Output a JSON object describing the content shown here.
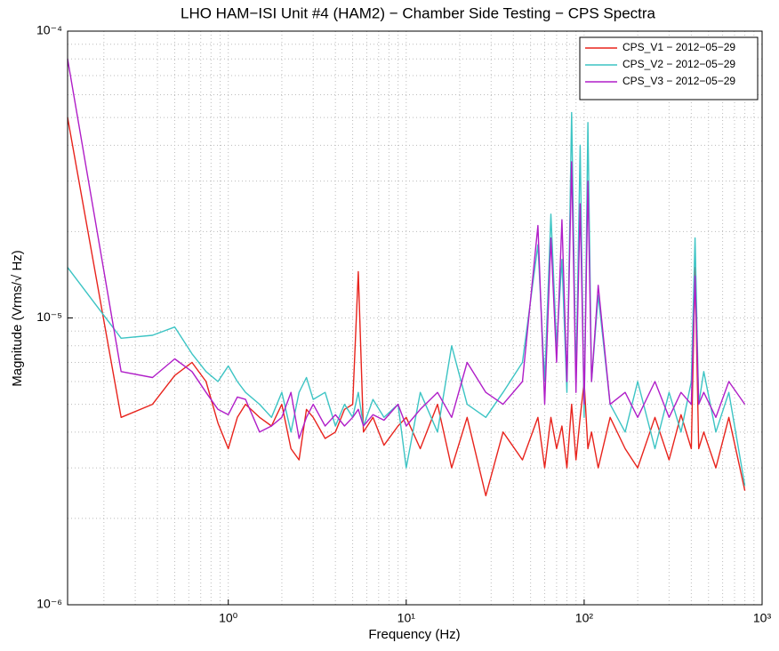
{
  "chart_data": {
    "type": "line",
    "title": "LHO HAM−ISI Unit #4 (HAM2) − Chamber Side Testing − CPS Spectra",
    "x_label": "Frequency (Hz)",
    "y_label": "Magnitude (Vrms/√ Hz)",
    "xscale": "log",
    "yscale": "log",
    "grid": true,
    "legend": "top-right",
    "xlim": [
      0.125,
      1000
    ],
    "ylim": [
      1e-06,
      0.0001
    ],
    "xticks": [
      {
        "value": 1,
        "label": "10⁰"
      },
      {
        "value": 10,
        "label": "10¹"
      },
      {
        "value": 100,
        "label": "10²"
      },
      {
        "value": 1000,
        "label": "10³"
      }
    ],
    "yticks": [
      {
        "value": 1e-06,
        "label": "10⁻⁶"
      },
      {
        "value": 1e-05,
        "label": "10⁻⁵"
      },
      {
        "value": 0.0001,
        "label": "10⁻⁴"
      }
    ],
    "x": [
      0.125,
      0.25,
      0.375,
      0.5,
      0.625,
      0.75,
      0.875,
      1,
      1.125,
      1.25,
      1.5,
      1.75,
      2,
      2.25,
      2.5,
      2.75,
      3,
      3.5,
      4,
      4.5,
      5,
      5.375,
      5.75,
      6.5,
      7.5,
      9,
      10,
      12,
      15,
      18,
      22,
      28,
      35,
      45,
      55,
      60,
      65,
      70,
      75,
      80,
      85,
      90,
      95,
      100,
      105,
      110,
      120,
      140,
      170,
      200,
      250,
      300,
      350,
      400,
      420,
      440,
      470,
      550,
      650,
      800
    ],
    "series": [
      {
        "name": "CPS_V1 − 2012−05−29",
        "color": "#e8231c",
        "values": [
          5e-05,
          4.5e-06,
          5e-06,
          6.3e-06,
          7e-06,
          6e-06,
          4.3e-06,
          3.5e-06,
          4.5e-06,
          5e-06,
          4.5e-06,
          4.2e-06,
          5e-06,
          3.5e-06,
          3.2e-06,
          4.8e-06,
          4.5e-06,
          3.8e-06,
          4e-06,
          4.8e-06,
          5e-06,
          1.45e-05,
          4e-06,
          4.5e-06,
          3.6e-06,
          4.2e-06,
          4.5e-06,
          3.5e-06,
          5e-06,
          3e-06,
          4.5e-06,
          2.4e-06,
          4e-06,
          3.2e-06,
          4.5e-06,
          3e-06,
          4.5e-06,
          3.5e-06,
          4.2e-06,
          3e-06,
          5e-06,
          3.2e-06,
          4.5e-06,
          6e-06,
          3.5e-06,
          4e-06,
          3e-06,
          4.5e-06,
          3.5e-06,
          3e-06,
          4.5e-06,
          3.2e-06,
          4.6e-06,
          3.5e-06,
          1.5e-05,
          3.5e-06,
          4e-06,
          3e-06,
          4.5e-06,
          2.5e-06
        ]
      },
      {
        "name": "CPS_V2 − 2012−05−29",
        "color": "#3cc4c4",
        "values": [
          1.5e-05,
          8.5e-06,
          8.7e-06,
          9.3e-06,
          7.5e-06,
          6.5e-06,
          6e-06,
          6.8e-06,
          6e-06,
          5.5e-06,
          5e-06,
          4.5e-06,
          5.5e-06,
          4e-06,
          5.5e-06,
          6.2e-06,
          5.2e-06,
          5.5e-06,
          4.2e-06,
          5e-06,
          4.5e-06,
          5.5e-06,
          4.2e-06,
          5.2e-06,
          4.5e-06,
          5e-06,
          3e-06,
          5.5e-06,
          4e-06,
          8e-06,
          5e-06,
          4.5e-06,
          5.5e-06,
          7e-06,
          1.8e-05,
          6e-06,
          2.3e-05,
          8e-06,
          1.6e-05,
          5.5e-06,
          5.2e-05,
          6e-06,
          4e-05,
          4.5e-06,
          4.8e-05,
          6e-06,
          1.2e-05,
          5e-06,
          4e-06,
          6e-06,
          3.5e-06,
          5.5e-06,
          4e-06,
          6e-06,
          1.9e-05,
          5e-06,
          6.5e-06,
          4e-06,
          5.5e-06,
          2.6e-06
        ]
      },
      {
        "name": "CPS_V3 − 2012−05−29",
        "color": "#b01ec8",
        "values": [
          8e-05,
          6.5e-06,
          6.2e-06,
          7.2e-06,
          6.5e-06,
          5.5e-06,
          4.8e-06,
          4.6e-06,
          5.3e-06,
          5.2e-06,
          4e-06,
          4.2e-06,
          4.5e-06,
          5.5e-06,
          3.8e-06,
          4.5e-06,
          5e-06,
          4.2e-06,
          4.6e-06,
          4.2e-06,
          4.5e-06,
          4.8e-06,
          4.2e-06,
          4.6e-06,
          4.4e-06,
          5e-06,
          4.2e-06,
          4.8e-06,
          5.5e-06,
          4.5e-06,
          7e-06,
          5.5e-06,
          5e-06,
          6e-06,
          2.1e-05,
          5e-06,
          1.9e-05,
          7e-06,
          2.2e-05,
          6e-06,
          3.5e-05,
          5.5e-06,
          2.5e-05,
          5e-06,
          3e-05,
          6e-06,
          1.3e-05,
          5e-06,
          5.5e-06,
          4.5e-06,
          6e-06,
          4.5e-06,
          5.5e-06,
          5e-06,
          1.4e-05,
          5e-06,
          5.5e-06,
          4.5e-06,
          6e-06,
          5e-06
        ]
      }
    ]
  }
}
